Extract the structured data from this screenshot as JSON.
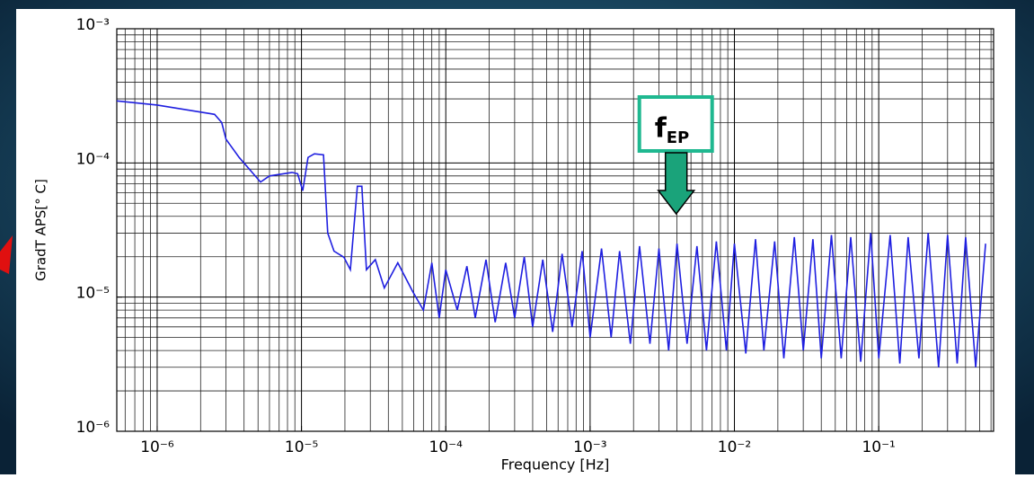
{
  "chart_data": {
    "type": "line",
    "xlabel": "Frequency [Hz]",
    "ylabel": "GradT APS[° C]",
    "annotation": {
      "text": "f",
      "subscript": "EP",
      "x": 0.00395
    },
    "color": "#1f1fe0",
    "xscale": "log",
    "yscale": "log",
    "grid": true,
    "xlim": [
      5.25e-07,
      0.625
    ],
    "ylim": [
      1e-06,
      0.001
    ],
    "xticks": [
      {
        "value": 1e-06,
        "label": "10⁻⁶"
      },
      {
        "value": 1e-05,
        "label": "10⁻⁵"
      },
      {
        "value": 0.0001,
        "label": "10⁻⁴"
      },
      {
        "value": 0.001,
        "label": "10⁻³"
      },
      {
        "value": 0.01,
        "label": "10⁻²"
      },
      {
        "value": 0.1,
        "label": "10⁻¹"
      }
    ],
    "yticks": [
      {
        "value": 1e-06,
        "label": "10⁻⁶"
      },
      {
        "value": 1e-05,
        "label": "10⁻⁵"
      },
      {
        "value": 0.0001,
        "label": "10⁻⁴"
      },
      {
        "value": 0.001,
        "label": "10⁻³"
      }
    ],
    "x": [
      5.25e-07,
      1e-06,
      2.5e-06,
      2.8e-06,
      3e-06,
      3.7e-06,
      5.2e-06,
      6e-06,
      8.6e-06,
      9.4e-06,
      1.02e-05,
      1.11e-05,
      1.23e-05,
      1.42e-05,
      1.52e-05,
      1.68e-05,
      1.97e-05,
      2.18e-05,
      2.44e-05,
      2.62e-05,
      2.82e-05,
      3.25e-05,
      3.75e-05,
      4.65e-05,
      5.9e-05,
      7e-05,
      8e-05,
      9e-05,
      0.0001,
      0.00012,
      0.00014,
      0.00016,
      0.00019,
      0.00022,
      0.00026,
      0.0003,
      0.00035,
      0.0004,
      0.00047,
      0.00055,
      0.00064,
      0.00075,
      0.00088,
      0.001,
      0.0012,
      0.0014,
      0.0016,
      0.0019,
      0.0022,
      0.0026,
      0.003,
      0.0035,
      0.004,
      0.0047,
      0.0055,
      0.0064,
      0.0075,
      0.0088,
      0.01,
      0.012,
      0.014,
      0.016,
      0.019,
      0.022,
      0.026,
      0.03,
      0.035,
      0.04,
      0.047,
      0.055,
      0.064,
      0.075,
      0.088,
      0.1,
      0.12,
      0.14,
      0.16,
      0.19,
      0.22,
      0.26,
      0.3,
      0.35,
      0.4,
      0.47,
      0.55
    ],
    "values": [
      0.00029,
      0.00027,
      0.00023,
      0.0002,
      0.00015,
      0.00011,
      7.2e-05,
      8e-05,
      8.5e-05,
      8.3e-05,
      6.2e-05,
      0.00011,
      0.000117,
      0.000115,
      3e-05,
      2.2e-05,
      1.98e-05,
      1.6e-05,
      6.7e-05,
      6.7e-05,
      1.6e-05,
      1.9e-05,
      1.17e-05,
      1.8e-05,
      1.1e-05,
      8e-06,
      1.8e-05,
      7e-06,
      1.6e-05,
      8e-06,
      1.7e-05,
      7e-06,
      1.9e-05,
      6.5e-06,
      1.8e-05,
      7e-06,
      2e-05,
      6e-06,
      1.9e-05,
      5.5e-06,
      2.1e-05,
      6e-06,
      2.2e-05,
      5e-06,
      2.3e-05,
      5e-06,
      2.2e-05,
      4.5e-06,
      2.4e-05,
      4.5e-06,
      2.3e-05,
      4e-06,
      2.5e-05,
      4.5e-06,
      2.4e-05,
      4e-06,
      2.6e-05,
      4e-06,
      2.5e-05,
      3.8e-06,
      2.7e-05,
      4e-06,
      2.6e-05,
      3.5e-06,
      2.8e-05,
      4e-06,
      2.7e-05,
      3.5e-06,
      2.9e-05,
      3.5e-06,
      2.8e-05,
      3.3e-06,
      3e-05,
      3.5e-06,
      2.9e-05,
      3.2e-06,
      2.8e-05,
      3.5e-06,
      3e-05,
      3e-06,
      2.9e-05,
      3.2e-06,
      2.8e-05,
      3e-06,
      2.5e-05
    ]
  }
}
